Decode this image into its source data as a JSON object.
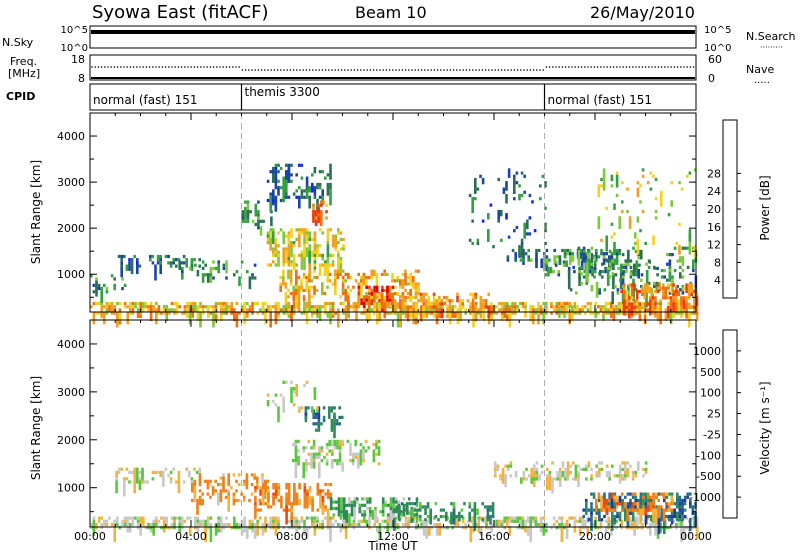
{
  "header": {
    "station": "Syowa East (fitACF)",
    "beam": "Beam 10",
    "date": "26/May/2010"
  },
  "strip_panels": {
    "nsky": {
      "left_label": "N.Sky",
      "left_ticks": [
        "10^5",
        "10^0"
      ],
      "right_ticks": [
        "10^5",
        "10^0"
      ],
      "right_label": "N.Search",
      "right_legend_line": "·········"
    },
    "freq": {
      "left_label_1": "Freq.",
      "left_label_2": "[MHz]",
      "left_ticks": [
        "18",
        "8"
      ],
      "right_ticks": [
        "60",
        "0"
      ],
      "right_label": "Nave",
      "right_legend_line": "·····"
    },
    "cpid": {
      "label": "CPID",
      "segments": [
        {
          "name": "normal (fast) 151",
          "start_hour": 0,
          "end_hour": 6
        },
        {
          "name": "themis 3300",
          "start_hour": 6,
          "end_hour": 18
        },
        {
          "name": "normal (fast) 151",
          "start_hour": 18,
          "end_hour": 24
        }
      ]
    }
  },
  "chart_data": [
    {
      "type": "heatmap",
      "parameter": "power",
      "ylabel": "Slant Range [km]",
      "xlabel": "Time UT",
      "xlim": [
        0,
        24
      ],
      "ylim": [
        180,
        4500
      ],
      "x_ticks": [
        "00:00",
        "04:00",
        "08:00",
        "12:00",
        "16:00",
        "20:00",
        "00:00"
      ],
      "y_ticks": [
        1000,
        2000,
        3000,
        4000
      ],
      "colorbar": {
        "label": "Power [dB]",
        "ticks": [
          "4",
          "8",
          "12",
          "16",
          "20",
          "24",
          "28"
        ],
        "colors": [
          "#1020ff",
          "#1c44a8",
          "#2a7050",
          "#30a040",
          "#7ec83c",
          "#f4d020",
          "#f0a020",
          "#f07010",
          "#f03a10",
          "#e80000"
        ]
      },
      "regions": [
        {
          "t": [
            0.0,
            24.0
          ],
          "r": [
            180,
            400
          ],
          "value": 18,
          "density": 0.6
        },
        {
          "t": [
            1.0,
            4.3
          ],
          "r": [
            1200,
            1420
          ],
          "value": 7,
          "density": 0.35
        },
        {
          "t": [
            0.0,
            1.4
          ],
          "r": [
            600,
            1000
          ],
          "value": 8,
          "density": 0.2
        },
        {
          "t": [
            3.5,
            6.5
          ],
          "r": [
            900,
            1300
          ],
          "value": 8,
          "density": 0.2
        },
        {
          "t": [
            6.0,
            7.2
          ],
          "r": [
            2000,
            2600
          ],
          "value": 9,
          "density": 0.25
        },
        {
          "t": [
            7.0,
            9.5
          ],
          "r": [
            2600,
            3400
          ],
          "value": 7,
          "density": 0.25
        },
        {
          "t": [
            7.0,
            10.0
          ],
          "r": [
            1200,
            2000
          ],
          "value": 16,
          "density": 0.35
        },
        {
          "t": [
            8.8,
            9.4
          ],
          "r": [
            2200,
            2600
          ],
          "value": 22,
          "density": 0.4
        },
        {
          "t": [
            7.5,
            13.0
          ],
          "r": [
            500,
            1100
          ],
          "value": 19,
          "density": 0.3
        },
        {
          "t": [
            10.6,
            12.0
          ],
          "r": [
            350,
            750
          ],
          "value": 28,
          "density": 0.55
        },
        {
          "t": [
            11.0,
            16.0
          ],
          "r": [
            300,
            600
          ],
          "value": 20,
          "density": 0.4
        },
        {
          "t": [
            16.5,
            21.0
          ],
          "r": [
            1300,
            1550
          ],
          "value": 8,
          "density": 0.4
        },
        {
          "t": [
            15.0,
            18.0
          ],
          "r": [
            1600,
            3300
          ],
          "value": 7,
          "density": 0.08
        },
        {
          "t": [
            18.0,
            22.5
          ],
          "r": [
            1000,
            1300
          ],
          "value": 9,
          "density": 0.3
        },
        {
          "t": [
            19.0,
            24.0
          ],
          "r": [
            600,
            1600
          ],
          "value": 10,
          "density": 0.2
        },
        {
          "t": [
            21.0,
            24.0
          ],
          "r": [
            250,
            800
          ],
          "value": 22,
          "density": 0.45
        },
        {
          "t": [
            20.0,
            24.0
          ],
          "r": [
            1600,
            3300
          ],
          "value": 14,
          "density": 0.06
        }
      ]
    },
    {
      "type": "heatmap",
      "parameter": "velocity",
      "ylabel": "Slant Range [km]",
      "xlabel": "Time UT",
      "xlim": [
        0,
        24
      ],
      "ylim": [
        180,
        4500
      ],
      "x_ticks": [
        "00:00",
        "04:00",
        "08:00",
        "12:00",
        "16:00",
        "20:00",
        "00:00"
      ],
      "y_ticks": [
        1000,
        2000,
        3000,
        4000
      ],
      "colorbar": {
        "label": "Velocity [m s⁻¹]",
        "ticks": [
          "1000",
          "500",
          "100",
          "25",
          "-25",
          "-100",
          "-500",
          "-1000"
        ],
        "colors": [
          "#1e3aa8",
          "#2a6a8a",
          "#2e8a5a",
          "#5ac83c",
          "#c8c8c8",
          "#f0b43c",
          "#f08018",
          "#f04810",
          "#e80000"
        ]
      },
      "regions": [
        {
          "t": [
            0.0,
            24.0
          ],
          "r": [
            180,
            400
          ],
          "value": 0,
          "density": 0.5
        },
        {
          "t": [
            1.0,
            4.3
          ],
          "r": [
            1150,
            1420
          ],
          "value": 0,
          "density": 0.35
        },
        {
          "t": [
            4.0,
            7.0
          ],
          "r": [
            700,
            1300
          ],
          "value": -200,
          "density": 0.3
        },
        {
          "t": [
            6.5,
            9.5
          ],
          "r": [
            500,
            1100
          ],
          "value": -300,
          "density": 0.35
        },
        {
          "t": [
            8.5,
            10.0
          ],
          "r": [
            2200,
            2700
          ],
          "value": 600,
          "density": 0.3
        },
        {
          "t": [
            8.0,
            11.5
          ],
          "r": [
            1500,
            2000
          ],
          "value": 20,
          "density": 0.3
        },
        {
          "t": [
            9.5,
            13.0
          ],
          "r": [
            400,
            800
          ],
          "value": 120,
          "density": 0.4
        },
        {
          "t": [
            12.0,
            16.0
          ],
          "r": [
            300,
            700
          ],
          "value": 300,
          "density": 0.35
        },
        {
          "t": [
            16.0,
            22.0
          ],
          "r": [
            1200,
            1550
          ],
          "value": 0,
          "density": 0.35
        },
        {
          "t": [
            19.5,
            24.0
          ],
          "r": [
            300,
            900
          ],
          "value": 700,
          "density": 0.35
        },
        {
          "t": [
            20.0,
            23.0
          ],
          "r": [
            500,
            900
          ],
          "value": -300,
          "density": 0.25
        },
        {
          "t": [
            7.0,
            9.0
          ],
          "r": [
            2600,
            3300
          ],
          "value": 0,
          "density": 0.12
        }
      ]
    }
  ]
}
